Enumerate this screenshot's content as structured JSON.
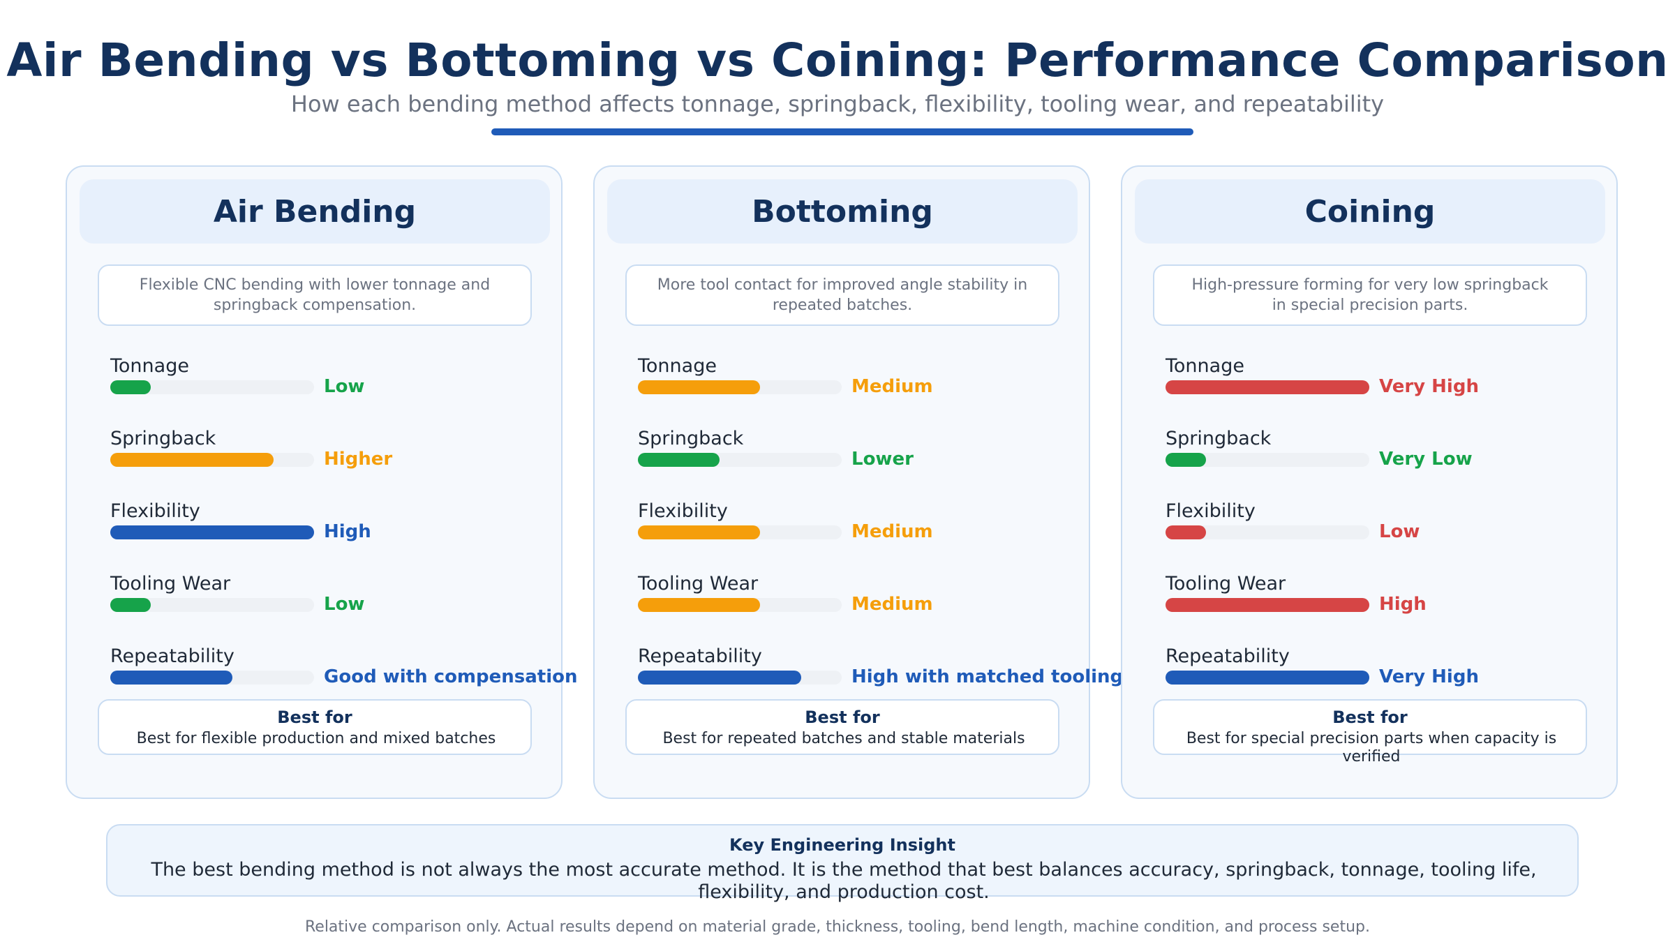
{
  "header": {
    "title": "Air Bending vs Bottoming vs Coining: Performance Comparison",
    "subtitle": "How each bending method affects tonnage, springback, flexibility, tooling wear, and repeatability"
  },
  "colors": {
    "green": "#16a34a",
    "orange": "#f59e0b",
    "blue": "#1f5bb8",
    "red": "#d64545",
    "track": "#eef1f5"
  },
  "methods": [
    {
      "name": "Air Bending",
      "description": "Flexible CNC bending with lower tonnage and springback compensation.",
      "metrics": [
        {
          "label": "Tonnage",
          "value": "Low",
          "level": 0.2,
          "color": "green"
        },
        {
          "label": "Springback",
          "value": "Higher",
          "level": 0.8,
          "color": "orange"
        },
        {
          "label": "Flexibility",
          "value": "High",
          "level": 1.0,
          "color": "blue"
        },
        {
          "label": "Tooling Wear",
          "value": "Low",
          "level": 0.2,
          "color": "green"
        },
        {
          "label": "Repeatability",
          "value": "Good with compensation",
          "level": 0.6,
          "color": "blue"
        }
      ],
      "best_title": "Best for",
      "best_text": "Best for flexible production and mixed batches"
    },
    {
      "name": "Bottoming",
      "description": "More tool contact for improved angle stability in repeated batches.",
      "metrics": [
        {
          "label": "Tonnage",
          "value": "Medium",
          "level": 0.6,
          "color": "orange"
        },
        {
          "label": "Springback",
          "value": "Lower",
          "level": 0.4,
          "color": "green"
        },
        {
          "label": "Flexibility",
          "value": "Medium",
          "level": 0.6,
          "color": "orange"
        },
        {
          "label": "Tooling Wear",
          "value": "Medium",
          "level": 0.6,
          "color": "orange"
        },
        {
          "label": "Repeatability",
          "value": "High with matched tooling",
          "level": 0.8,
          "color": "blue"
        }
      ],
      "best_title": "Best for",
      "best_text": "Best for repeated batches and stable materials"
    },
    {
      "name": "Coining",
      "description": "High-pressure forming for very low springback in special precision parts.",
      "metrics": [
        {
          "label": "Tonnage",
          "value": "Very High",
          "level": 1.0,
          "color": "red"
        },
        {
          "label": "Springback",
          "value": "Very Low",
          "level": 0.2,
          "color": "green"
        },
        {
          "label": "Flexibility",
          "value": "Low",
          "level": 0.2,
          "color": "red"
        },
        {
          "label": "Tooling Wear",
          "value": "High",
          "level": 1.0,
          "color": "red"
        },
        {
          "label": "Repeatability",
          "value": "Very High",
          "level": 1.0,
          "color": "blue"
        }
      ],
      "best_title": "Best for",
      "best_text": "Best for special precision parts when capacity is verified"
    }
  ],
  "insight": {
    "title": "Key Engineering Insight",
    "text": "The best bending method is not always the most accurate method. It is the method that best balances accuracy, springback, tonnage, tooling life, flexibility, and production cost."
  },
  "footnote": "Relative comparison only. Actual results depend on material grade, thickness, tooling, bend length, machine condition, and process setup."
}
